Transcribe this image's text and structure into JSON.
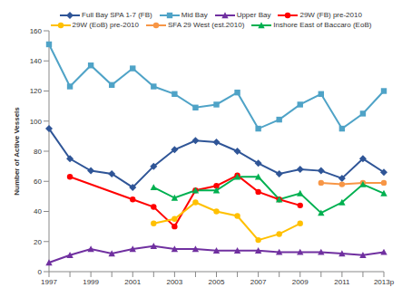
{
  "chart_data": {
    "type": "line",
    "y_label": "Number of Active Vessels",
    "categories": [
      "1997",
      null,
      "1999",
      null,
      "2001",
      null,
      "2003",
      null,
      "2005",
      null,
      "2007",
      null,
      "2009",
      null,
      "2011",
      null,
      "2013p"
    ],
    "ylim": [
      0,
      160
    ],
    "yticks": [
      0,
      20,
      40,
      60,
      80,
      100,
      120,
      140,
      160
    ],
    "grid": false,
    "legend": "top",
    "series": [
      {
        "name": "Full Bay SPA 1-7 (FB)",
        "color": "#2F5597",
        "marker": "diamond",
        "values": [
          95,
          75,
          67,
          65,
          56,
          70,
          81,
          87,
          86,
          80,
          72,
          65,
          68,
          67,
          62,
          75,
          66
        ]
      },
      {
        "name": "Mid Bay",
        "color": "#4FA3C7",
        "marker": "square",
        "values": [
          151,
          123,
          137,
          124,
          135,
          123,
          118,
          109,
          111,
          119,
          95,
          101,
          111,
          118,
          95,
          105,
          120
        ]
      },
      {
        "name": "Upper Bay",
        "color": "#7030A0",
        "marker": "triangle",
        "values": [
          6,
          11,
          15,
          12,
          15,
          17,
          15,
          15,
          14,
          14,
          14,
          13,
          13,
          13,
          12,
          11,
          13
        ]
      },
      {
        "name": "29W (FB) pre-2010",
        "color": "#FF0000",
        "marker": "circle",
        "values": [
          null,
          63,
          null,
          null,
          48,
          43,
          30,
          54,
          57,
          64,
          53,
          48,
          44,
          null,
          null,
          null,
          null
        ]
      },
      {
        "name": "29W (EoB) pre-2010",
        "color": "#FFC000",
        "marker": "circle",
        "values": [
          null,
          null,
          null,
          null,
          null,
          32,
          35,
          46,
          40,
          37,
          21,
          25,
          32,
          null,
          null,
          null,
          null
        ]
      },
      {
        "name": "SFA 29 West (est.2010)",
        "color": "#F79646",
        "marker": "circle",
        "values": [
          null,
          null,
          null,
          null,
          null,
          null,
          null,
          null,
          null,
          null,
          null,
          null,
          null,
          59,
          58,
          59,
          59
        ]
      },
      {
        "name": "Inshore East of Baccaro (EoB)",
        "color": "#00B050",
        "marker": "triangle",
        "values": [
          null,
          null,
          null,
          null,
          null,
          56,
          49,
          54,
          54,
          63,
          63,
          48,
          52,
          39,
          46,
          58,
          52
        ]
      }
    ]
  }
}
